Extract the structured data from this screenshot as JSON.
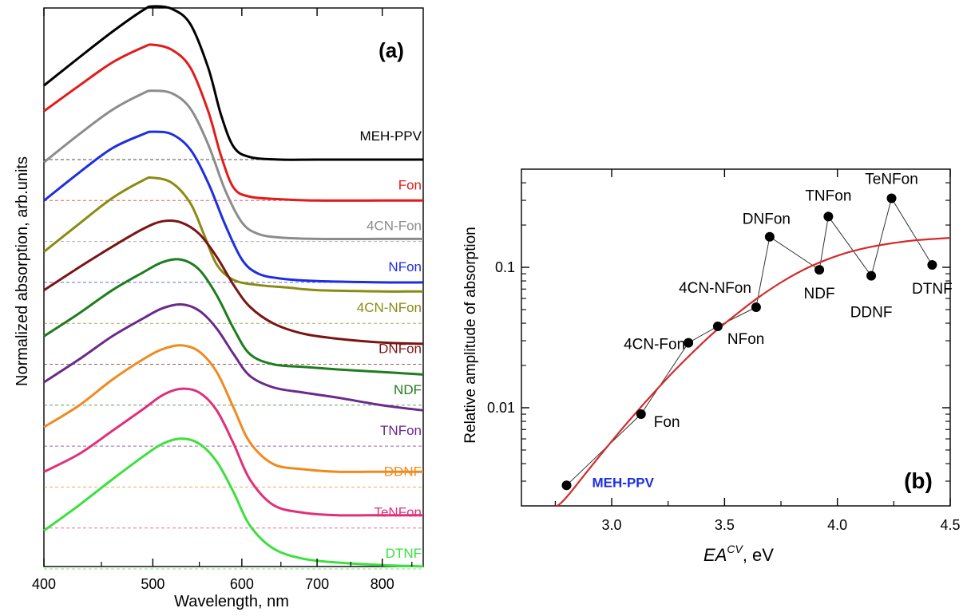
{
  "chart_data": [
    {
      "panel": "(a)",
      "type": "line",
      "xlabel": "Wavelength, nm",
      "ylabel": "Normalized absorption, arb.units",
      "x_scale": "log",
      "xlim": [
        400,
        870
      ],
      "xticks": [
        400,
        500,
        600,
        700,
        800
      ],
      "grid": false,
      "series": [
        {
          "name": "MEH-PPV",
          "color": "#000000",
          "baseline": 0.0,
          "x": [
            400,
            430,
            460,
            490,
            500,
            520,
            540,
            560,
            575,
            590,
            610,
            650,
            700,
            800,
            870
          ],
          "y": [
            0.58,
            0.8,
            1.0,
            1.17,
            1.2,
            1.18,
            1.06,
            0.72,
            0.35,
            0.1,
            0.02,
            0.0,
            0.0,
            0.0,
            0.0
          ]
        },
        {
          "name": "Fon",
          "color": "#e21b1b",
          "baseline": 0.0,
          "x": [
            400,
            430,
            460,
            490,
            500,
            520,
            540,
            560,
            575,
            590,
            610,
            650,
            700,
            800,
            870
          ],
          "y": [
            0.7,
            0.9,
            1.08,
            1.2,
            1.22,
            1.18,
            1.04,
            0.7,
            0.35,
            0.1,
            0.03,
            0.01,
            0.0,
            0.0,
            0.0
          ]
        },
        {
          "name": "4CN-Fon",
          "color": "#8c8c8c",
          "baseline": 0.0,
          "x": [
            400,
            430,
            460,
            490,
            500,
            520,
            540,
            560,
            580,
            600,
            620,
            650,
            700,
            800,
            870
          ],
          "y": [
            0.62,
            0.84,
            1.03,
            1.16,
            1.18,
            1.16,
            1.04,
            0.76,
            0.4,
            0.15,
            0.06,
            0.03,
            0.02,
            0.02,
            0.02
          ]
        },
        {
          "name": "NFon",
          "color": "#1d2ee0",
          "baseline": 0.0,
          "x": [
            400,
            430,
            460,
            490,
            500,
            520,
            540,
            560,
            580,
            600,
            620,
            650,
            700,
            800,
            870
          ],
          "y": [
            0.64,
            0.86,
            1.05,
            1.16,
            1.18,
            1.16,
            1.04,
            0.78,
            0.45,
            0.18,
            0.07,
            0.03,
            0.01,
            0.0,
            0.0
          ]
        },
        {
          "name": "4CN-NFon",
          "color": "#8b8b13",
          "baseline": 0.0,
          "x": [
            400,
            430,
            460,
            490,
            500,
            520,
            540,
            555,
            570,
            590,
            620,
            660,
            700,
            800,
            870
          ],
          "y": [
            0.56,
            0.78,
            0.98,
            1.12,
            1.14,
            1.1,
            0.94,
            0.7,
            0.46,
            0.34,
            0.3,
            0.28,
            0.26,
            0.25,
            0.25
          ]
        },
        {
          "name": "DNFon",
          "color": "#7a1515",
          "baseline": 0.0,
          "x": [
            400,
            430,
            460,
            490,
            510,
            530,
            550,
            570,
            590,
            610,
            640,
            680,
            730,
            800,
            870
          ],
          "y": [
            0.58,
            0.76,
            0.92,
            1.06,
            1.12,
            1.11,
            1.02,
            0.84,
            0.62,
            0.45,
            0.32,
            0.24,
            0.2,
            0.17,
            0.16
          ]
        },
        {
          "name": "NDF",
          "color": "#1e7d1e",
          "baseline": 0.0,
          "x": [
            400,
            430,
            460,
            490,
            510,
            530,
            550,
            570,
            590,
            610,
            640,
            680,
            730,
            800,
            870
          ],
          "y": [
            0.54,
            0.72,
            0.9,
            1.04,
            1.12,
            1.14,
            1.06,
            0.86,
            0.6,
            0.4,
            0.32,
            0.3,
            0.28,
            0.26,
            0.24
          ]
        },
        {
          "name": "TNFon",
          "color": "#6a2a8a",
          "baseline": 0.0,
          "x": [
            400,
            430,
            460,
            490,
            510,
            530,
            550,
            570,
            590,
            610,
            640,
            680,
            730,
            800,
            870
          ],
          "y": [
            0.5,
            0.68,
            0.86,
            1.0,
            1.08,
            1.11,
            1.06,
            0.92,
            0.72,
            0.55,
            0.46,
            0.42,
            0.38,
            0.32,
            0.28
          ]
        },
        {
          "name": "DDNF",
          "color": "#f08a1f",
          "baseline": 0.0,
          "x": [
            400,
            430,
            460,
            490,
            510,
            530,
            550,
            570,
            590,
            610,
            640,
            680,
            730,
            800,
            870
          ],
          "y": [
            0.47,
            0.64,
            0.84,
            1.0,
            1.08,
            1.11,
            1.06,
            0.9,
            0.62,
            0.35,
            0.18,
            0.14,
            0.12,
            0.12,
            0.12
          ]
        },
        {
          "name": "TeNFon",
          "color": "#e0307a",
          "baseline": 0.0,
          "x": [
            400,
            430,
            460,
            490,
            510,
            530,
            550,
            570,
            590,
            610,
            640,
            680,
            730,
            800,
            870
          ],
          "y": [
            0.44,
            0.58,
            0.76,
            0.93,
            1.04,
            1.09,
            1.06,
            0.92,
            0.66,
            0.38,
            0.18,
            0.12,
            0.1,
            0.1,
            0.1
          ]
        },
        {
          "name": "DTNF",
          "color": "#3de03d",
          "baseline": 0.0,
          "x": [
            400,
            430,
            460,
            490,
            510,
            530,
            550,
            570,
            590,
            610,
            640,
            680,
            730,
            800,
            870
          ],
          "y": [
            0.3,
            0.5,
            0.7,
            0.88,
            0.98,
            1.02,
            0.98,
            0.84,
            0.6,
            0.34,
            0.16,
            0.08,
            0.05,
            0.03,
            0.02
          ]
        }
      ],
      "annotations": [
        "(a)"
      ]
    },
    {
      "panel": "(b)",
      "type": "scatter",
      "xlabel_main": "EA",
      "xlabel_sup": "CV",
      "xlabel_unit": ", eV",
      "ylabel": "Relative amplitude of absorption",
      "y_scale": "log",
      "xlim": [
        2.6,
        4.5
      ],
      "ylim": [
        0.002,
        0.5
      ],
      "xticks": [
        3.0,
        3.5,
        4.0,
        4.5
      ],
      "yticks": [
        0.01,
        0.1
      ],
      "ytick_labels": [
        "0.01",
        "0.1"
      ],
      "grid": false,
      "points": [
        {
          "label": "MEH-PPV",
          "x": 2.8,
          "y": 0.0028,
          "label_color": "#1d2ee0"
        },
        {
          "label": "Fon",
          "x": 3.13,
          "y": 0.009,
          "label_color": "#000000"
        },
        {
          "label": "4CN-Fon",
          "x": 3.34,
          "y": 0.029,
          "label_color": "#000000"
        },
        {
          "label": "NFon",
          "x": 3.47,
          "y": 0.038,
          "label_color": "#000000"
        },
        {
          "label": "4CN-NFon",
          "x": 3.64,
          "y": 0.052,
          "label_color": "#000000"
        },
        {
          "label": "DNFon",
          "x": 3.7,
          "y": 0.165,
          "label_color": "#000000"
        },
        {
          "label": "NDF",
          "x": 3.92,
          "y": 0.096,
          "label_color": "#000000"
        },
        {
          "label": "TNFon",
          "x": 3.96,
          "y": 0.23,
          "label_color": "#000000"
        },
        {
          "label": "DDNF",
          "x": 4.15,
          "y": 0.087,
          "label_color": "#000000"
        },
        {
          "label": "TeNFon",
          "x": 4.24,
          "y": 0.31,
          "label_color": "#000000"
        },
        {
          "label": "DTNF",
          "x": 4.42,
          "y": 0.104,
          "label_color": "#000000"
        }
      ],
      "fit_curve": {
        "color": "#d42a2a",
        "x": [
          2.75,
          2.85,
          2.95,
          3.05,
          3.15,
          3.25,
          3.35,
          3.45,
          3.55,
          3.65,
          3.75,
          3.85,
          3.95,
          4.05,
          4.15,
          4.25,
          4.35,
          4.5
        ],
        "y": [
          0.0018,
          0.0029,
          0.0046,
          0.0072,
          0.011,
          0.0165,
          0.024,
          0.034,
          0.046,
          0.061,
          0.078,
          0.096,
          0.113,
          0.128,
          0.14,
          0.149,
          0.156,
          0.162
        ]
      },
      "annotations": [
        "(b)"
      ]
    }
  ]
}
